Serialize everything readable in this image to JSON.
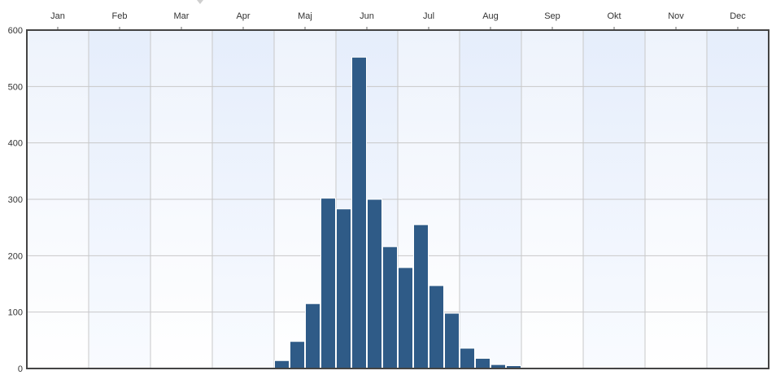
{
  "chart_data": {
    "type": "bar",
    "x_unit": "week",
    "x_axis": {
      "position": "top",
      "months": [
        "Jan",
        "Feb",
        "Mar",
        "Apr",
        "Maj",
        "Jun",
        "Jul",
        "Aug",
        "Sep",
        "Okt",
        "Nov",
        "Dec"
      ]
    },
    "y_axis": {
      "ticks": [
        "0",
        "100",
        "200",
        "300",
        "400",
        "500",
        "600"
      ],
      "ylim": [
        0,
        600
      ]
    },
    "grid": true,
    "bar_color": "#2f5b87",
    "weeks": [
      1,
      2,
      3,
      4,
      5,
      6,
      7,
      8,
      9,
      10,
      11,
      12,
      13,
      14,
      15,
      16,
      17,
      18,
      19,
      20,
      21,
      22,
      23,
      24,
      25,
      26,
      27,
      28,
      29,
      30,
      31,
      32,
      33,
      34,
      35,
      36,
      37,
      38,
      39,
      40,
      41,
      42,
      43,
      44,
      45,
      46,
      47,
      48
    ],
    "values": [
      0,
      0,
      0,
      0,
      0,
      0,
      0,
      0,
      0,
      0,
      0,
      0,
      0,
      0,
      0,
      0,
      14,
      48,
      115,
      302,
      283,
      552,
      300,
      216,
      179,
      255,
      147,
      98,
      36,
      18,
      7,
      5,
      2,
      2,
      0,
      0,
      0,
      2,
      0,
      0,
      0,
      2,
      0,
      0,
      0,
      0,
      0,
      0
    ]
  }
}
